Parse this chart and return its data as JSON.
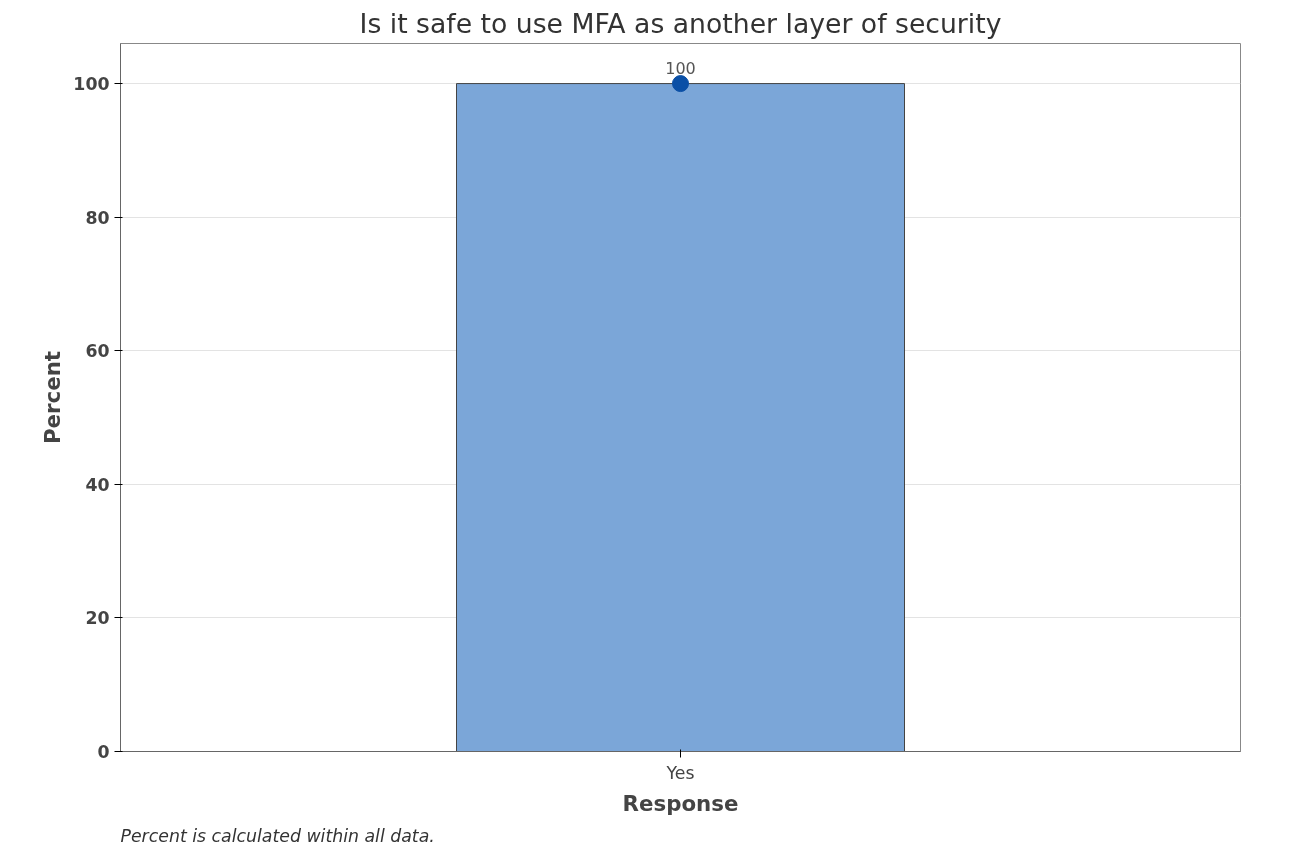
{
  "chart_data": {
    "type": "bar",
    "title": "Is it safe to use MFA as another layer of security",
    "xlabel": "Response",
    "ylabel": "Percent",
    "categories": [
      "Yes"
    ],
    "series": [
      {
        "color": "#7ba6d8",
        "values": [
          100
        ]
      },
      {
        "type": "scatter",
        "color": "#0a4fa6",
        "x": [
          "Yes"
        ],
        "values": [
          100
        ],
        "value_labels": [
          "100"
        ]
      }
    ],
    "ylim": [
      0,
      106
    ],
    "yticks": [
      0,
      20,
      40,
      60,
      80,
      100
    ],
    "grid": "y",
    "marker": "circle",
    "annotations": [
      "Percent is calculated within all data."
    ]
  }
}
